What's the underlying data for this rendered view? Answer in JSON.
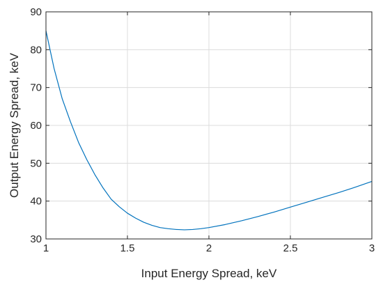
{
  "chart_data": {
    "type": "line",
    "title": "",
    "xlabel": "Input Energy Spread, keV",
    "ylabel": "Output Energy Spread, keV",
    "xlim": [
      1,
      3
    ],
    "ylim": [
      30,
      90
    ],
    "xticks": [
      1,
      1.5,
      2,
      2.5,
      3
    ],
    "yticks": [
      30,
      40,
      50,
      60,
      70,
      80,
      90
    ],
    "xtick_labels": [
      "1",
      "1.5",
      "2",
      "2.5",
      "3"
    ],
    "ytick_labels": [
      "30",
      "40",
      "50",
      "60",
      "70",
      "80",
      "90"
    ],
    "grid": true,
    "colors": {
      "line": "#0072BD",
      "grid": "#dcdcdc",
      "axes": "#262626"
    },
    "series": [
      {
        "x": [
          1.0,
          1.05,
          1.1,
          1.15,
          1.2,
          1.25,
          1.3,
          1.35,
          1.4,
          1.45,
          1.5,
          1.55,
          1.6,
          1.65,
          1.7,
          1.75,
          1.8,
          1.85,
          1.9,
          1.95,
          2.0,
          2.1,
          2.2,
          2.3,
          2.4,
          2.5,
          2.6,
          2.7,
          2.8,
          2.9,
          3.0
        ],
        "y": [
          85.0,
          75.0,
          67.0,
          61.0,
          55.5,
          51.0,
          47.0,
          43.5,
          40.5,
          38.5,
          36.8,
          35.5,
          34.4,
          33.6,
          33.0,
          32.7,
          32.5,
          32.4,
          32.5,
          32.7,
          33.0,
          33.8,
          34.8,
          35.9,
          37.1,
          38.4,
          39.7,
          41.0,
          42.3,
          43.7,
          45.2
        ]
      }
    ]
  }
}
